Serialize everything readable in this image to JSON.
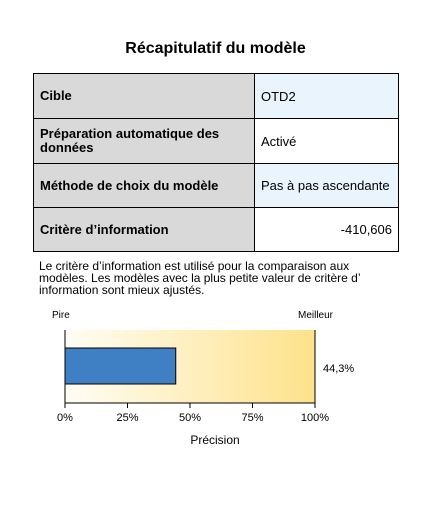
{
  "title": "Récapitulatif du modèle",
  "summary_rows": [
    {
      "label": "Cible",
      "value": "OTD2"
    },
    {
      "label": "Préparation automatique des données",
      "value": "Activé"
    },
    {
      "label": "Méthode de choix du modèle",
      "value": "Pas à pas ascendante"
    },
    {
      "label": "Critère d’information",
      "value": "-410,606"
    }
  ],
  "note": "Le critère d’information est utilisé pour la comparaison aux modèles. Les modèles avec la plus petite valeur de critère d’ information sont mieux ajustés.",
  "chart_data": {
    "type": "bar",
    "categories": [
      ""
    ],
    "values": [
      44.3
    ],
    "value_label": "44,3%",
    "xlabel": "Précision",
    "xlim": [
      0,
      100
    ],
    "ticks": [
      0,
      25,
      50,
      75,
      100
    ],
    "tick_labels": [
      "0%",
      "25%",
      "50%",
      "75%",
      "100%"
    ],
    "scale_left_label": "Pire",
    "scale_right_label": "Meilleur",
    "bar_color": "#3f7fc4",
    "gradient_colors": [
      "#fffdf5",
      "#fde28a"
    ]
  }
}
